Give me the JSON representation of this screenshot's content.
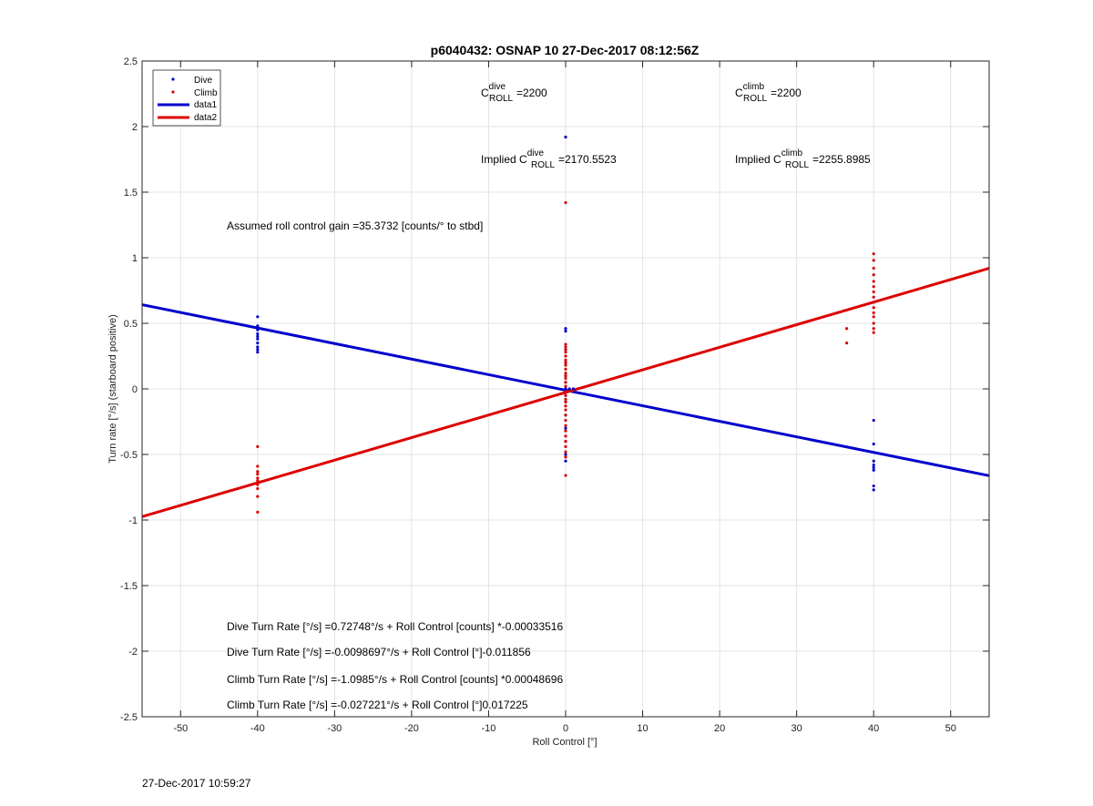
{
  "chart_data": {
    "type": "scatter",
    "title": "p6040432: OSNAP 10 27-Dec-2017 08:12:56Z",
    "xlabel": "Roll Control [°]",
    "ylabel": "Turn rate [°/s] (starboard positive)",
    "xlim": [
      -55,
      55
    ],
    "ylim": [
      -2.5,
      2.5
    ],
    "x_ticks": [
      -50,
      -40,
      -30,
      -20,
      -10,
      0,
      10,
      20,
      30,
      40,
      50
    ],
    "y_ticks": [
      2.5,
      2,
      1.5,
      1,
      0.5,
      0,
      -0.5,
      -1,
      -1.5,
      -2,
      -2.5
    ],
    "x_tick_labels": [
      "-50",
      "-40",
      "-30",
      "-20",
      "-10",
      "0",
      "10",
      "20",
      "30",
      "40",
      "50"
    ],
    "y_tick_labels": [
      "2.5",
      "2",
      "1.5",
      "1",
      "0.5",
      "0",
      "-0.5",
      "-1",
      "-1.5",
      "-2",
      "-2.5"
    ],
    "grid": true,
    "legend_position": "top-left",
    "legend": [
      {
        "label": "Dive",
        "kind": "marker",
        "color": "#0000cc"
      },
      {
        "label": "Climb",
        "kind": "marker",
        "color": "#dd0000"
      },
      {
        "label": "data1",
        "kind": "line",
        "color": "#0000cc"
      },
      {
        "label": "data2",
        "kind": "line",
        "color": "#dd0000"
      }
    ],
    "series": [
      {
        "name": "Dive",
        "kind": "points",
        "color": "#0000cc",
        "points": [
          [
            -40,
            0.55
          ],
          [
            -40,
            0.48
          ],
          [
            -40,
            0.45
          ],
          [
            -40,
            0.42
          ],
          [
            -40,
            0.4
          ],
          [
            -40,
            0.38
          ],
          [
            -40,
            0.35
          ],
          [
            -40,
            0.32
          ],
          [
            -40,
            0.3
          ],
          [
            -40,
            0.28
          ],
          [
            0,
            1.92
          ],
          [
            0,
            0.46
          ],
          [
            0,
            0.44
          ],
          [
            0,
            0.3
          ],
          [
            0,
            0.2
          ],
          [
            0,
            0.1
          ],
          [
            0,
            0.05
          ],
          [
            0,
            0
          ],
          [
            0,
            -0.05
          ],
          [
            0,
            -0.1
          ],
          [
            0,
            -0.2
          ],
          [
            0,
            -0.3
          ],
          [
            0,
            -0.4
          ],
          [
            0,
            -0.5
          ],
          [
            0,
            -0.55
          ],
          [
            0.5,
            0
          ],
          [
            1,
            0
          ],
          [
            40,
            -0.24
          ],
          [
            40,
            -0.42
          ],
          [
            40,
            -0.55
          ],
          [
            40,
            -0.58
          ],
          [
            40,
            -0.6
          ],
          [
            40,
            -0.62
          ],
          [
            40,
            -0.74
          ],
          [
            40,
            -0.77
          ]
        ]
      },
      {
        "name": "Climb",
        "kind": "points",
        "color": "#dd0000",
        "points": [
          [
            -40,
            -0.44
          ],
          [
            -40,
            -0.59
          ],
          [
            -40,
            -0.63
          ],
          [
            -40,
            -0.65
          ],
          [
            -40,
            -0.68
          ],
          [
            -40,
            -0.7
          ],
          [
            -40,
            -0.73
          ],
          [
            -40,
            -0.76
          ],
          [
            -40,
            -0.82
          ],
          [
            -40,
            -0.94
          ],
          [
            0,
            1.42
          ],
          [
            0,
            0.34
          ],
          [
            0,
            0.32
          ],
          [
            0,
            0.3
          ],
          [
            0,
            0.28
          ],
          [
            0,
            0.25
          ],
          [
            0,
            0.22
          ],
          [
            0,
            0.2
          ],
          [
            0,
            0.18
          ],
          [
            0,
            0.15
          ],
          [
            0,
            0.12
          ],
          [
            0,
            0.1
          ],
          [
            0,
            0.08
          ],
          [
            0,
            0.05
          ],
          [
            0,
            0.02
          ],
          [
            0,
            -0.02
          ],
          [
            0,
            -0.05
          ],
          [
            0,
            -0.08
          ],
          [
            0,
            -0.1
          ],
          [
            0,
            -0.13
          ],
          [
            0,
            -0.16
          ],
          [
            0,
            -0.2
          ],
          [
            0,
            -0.24
          ],
          [
            0,
            -0.28
          ],
          [
            0,
            -0.32
          ],
          [
            0,
            -0.36
          ],
          [
            0,
            -0.4
          ],
          [
            0,
            -0.44
          ],
          [
            0,
            -0.48
          ],
          [
            0,
            -0.52
          ],
          [
            0,
            -0.66
          ],
          [
            36.5,
            0.46
          ],
          [
            36.5,
            0.35
          ],
          [
            40,
            1.03
          ],
          [
            40,
            0.98
          ],
          [
            40,
            0.92
          ],
          [
            40,
            0.87
          ],
          [
            40,
            0.82
          ],
          [
            40,
            0.78
          ],
          [
            40,
            0.74
          ],
          [
            40,
            0.7
          ],
          [
            40,
            0.66
          ],
          [
            40,
            0.62
          ],
          [
            40,
            0.58
          ],
          [
            40,
            0.55
          ],
          [
            40,
            0.5
          ],
          [
            40,
            0.46
          ],
          [
            40,
            0.43
          ]
        ]
      },
      {
        "name": "data1",
        "kind": "line",
        "color": "#0000cc",
        "points": [
          [
            -55,
            0.642
          ],
          [
            55,
            -0.662
          ]
        ]
      },
      {
        "name": "data2",
        "kind": "line",
        "color": "#dd0000",
        "points": [
          [
            -55,
            -0.974
          ],
          [
            55,
            0.92
          ]
        ]
      }
    ],
    "annotations": {
      "c_roll_dive": {
        "prefix": "C",
        "sup": "dive",
        "sub": "ROLL",
        "value": "=2200"
      },
      "c_roll_climb": {
        "prefix": "C",
        "sup": "climb",
        "sub": "ROLL",
        "value": "=2200"
      },
      "implied_dive": {
        "prefix": "Implied C",
        "sup": "dive",
        "sub": "ROLL",
        "value": "=2170.5523"
      },
      "implied_climb": {
        "prefix": "Implied C",
        "sup": "climb",
        "sub": "ROLL",
        "value": "=2255.8985"
      },
      "gain": "Assumed roll control gain =35.3732 [counts/° to stbd]",
      "eq1": "Dive Turn Rate [°/s] =0.72748°/s + Roll Control [counts] *-0.00033516",
      "eq2": "Dive Turn Rate [°/s] =-0.0098697°/s + Roll Control [°]-0.011856",
      "eq3": "Climb Turn Rate [°/s] =-1.0985°/s + Roll Control [counts] *0.00048696",
      "eq4": "Climb Turn Rate [°/s] =-0.027221°/s + Roll Control [°]0.017225"
    }
  },
  "footer": {
    "timestamp": "27-Dec-2017 10:59:27"
  }
}
